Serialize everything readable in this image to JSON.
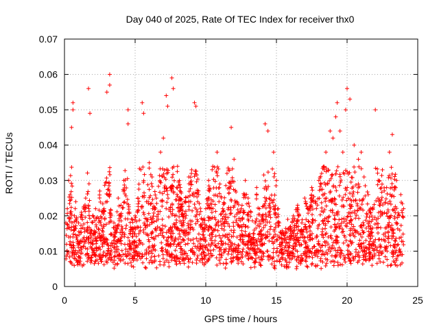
{
  "chart_data": {
    "type": "scatter",
    "title": "Day 040 of 2025, Rate Of TEC Index for receiver thx0",
    "xlabel": "GPS time / hours",
    "ylabel": "ROTI / TECUs",
    "xlim": [
      0,
      25
    ],
    "ylim": [
      0,
      0.07
    ],
    "x_ticks": [
      "0",
      "5",
      "10",
      "15",
      "20",
      "25"
    ],
    "y_ticks": [
      "0",
      "0.01",
      "0.02",
      "0.03",
      "0.04",
      "0.05",
      "0.06",
      "0.07"
    ],
    "grid": true,
    "marker": "plus",
    "color": "#ff0000",
    "series": [
      {
        "x": [
          0.1,
          0.2,
          0.3,
          0.4,
          0.5,
          0.6,
          0.6,
          0.6,
          0.7,
          0.8,
          1.0,
          1.2,
          1.5,
          1.7,
          1.8,
          1.8,
          2.0,
          2.2,
          2.5,
          2.8,
          3.0,
          3.2,
          3.2,
          3.3,
          3.5,
          3.8,
          4.0,
          4.2,
          4.5,
          4.5,
          4.6,
          4.8,
          5.0,
          5.2,
          5.5,
          5.6,
          5.8,
          6.0,
          6.2,
          6.5,
          6.8,
          7.0,
          7.2,
          7.3,
          7.5,
          7.6,
          7.7,
          7.8,
          8.0,
          8.2,
          8.5,
          8.8,
          9.0,
          9.2,
          9.3,
          9.5,
          9.8,
          10.0,
          10.2,
          10.5,
          10.8,
          11.0,
          11.2,
          11.5,
          11.8,
          12.0,
          12.2,
          12.5,
          12.8,
          13.0,
          13.2,
          13.5,
          13.6,
          13.8,
          14.0,
          14.2,
          14.4,
          14.5,
          14.8,
          15.0,
          15.2,
          15.5,
          15.8,
          16.0,
          16.2,
          16.5,
          16.8,
          17.0,
          17.2,
          17.5,
          17.8,
          18.0,
          18.2,
          18.5,
          18.8,
          19.0,
          19.2,
          19.3,
          19.5,
          19.7,
          19.9,
          20.0,
          20.2,
          20.5,
          20.8,
          21.0,
          21.2,
          21.5,
          21.8,
          22.0,
          22.2,
          22.5,
          22.8,
          23.0,
          23.2,
          23.5,
          23.8,
          24.0
        ],
        "y": [
          0.018,
          0.022,
          0.03,
          0.026,
          0.045,
          0.05,
          0.052,
          0.014,
          0.02,
          0.024,
          0.018,
          0.021,
          0.025,
          0.056,
          0.049,
          0.015,
          0.02,
          0.022,
          0.027,
          0.022,
          0.055,
          0.06,
          0.057,
          0.02,
          0.018,
          0.025,
          0.023,
          0.03,
          0.05,
          0.046,
          0.021,
          0.019,
          0.02,
          0.025,
          0.052,
          0.049,
          0.024,
          0.035,
          0.031,
          0.025,
          0.038,
          0.042,
          0.054,
          0.051,
          0.028,
          0.059,
          0.056,
          0.02,
          0.034,
          0.028,
          0.024,
          0.031,
          0.033,
          0.052,
          0.051,
          0.026,
          0.018,
          0.022,
          0.03,
          0.034,
          0.038,
          0.029,
          0.022,
          0.032,
          0.045,
          0.036,
          0.024,
          0.022,
          0.03,
          0.025,
          0.021,
          0.018,
          0.028,
          0.022,
          0.02,
          0.046,
          0.044,
          0.025,
          0.038,
          0.03,
          0.018,
          0.015,
          0.019,
          0.017,
          0.02,
          0.023,
          0.018,
          0.025,
          0.022,
          0.028,
          0.024,
          0.03,
          0.032,
          0.038,
          0.044,
          0.042,
          0.048,
          0.052,
          0.044,
          0.038,
          0.05,
          0.056,
          0.053,
          0.04,
          0.036,
          0.038,
          0.031,
          0.026,
          0.022,
          0.05,
          0.03,
          0.033,
          0.028,
          0.038,
          0.043,
          0.03,
          0.026,
          0.022
        ]
      }
    ]
  }
}
